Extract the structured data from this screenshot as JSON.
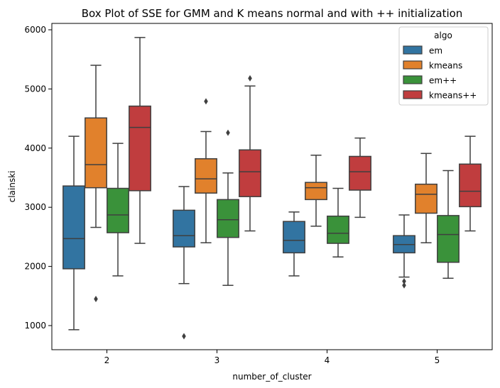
{
  "chart_data": {
    "type": "box",
    "title": "Box Plot of SSE for GMM and K means normal and with ++ initialization",
    "xlabel": "number_of_cluster",
    "ylabel": "clainski",
    "categories": [
      "2",
      "3",
      "4",
      "5"
    ],
    "ylim": [
      650,
      6300
    ],
    "yticks": [
      1000,
      2000,
      3000,
      4000,
      5000,
      6000
    ],
    "grid": false,
    "legend": {
      "title": "algo",
      "placement": "top-right"
    },
    "series": [
      {
        "name": "em",
        "color": "#3274a1",
        "boxes": [
          {
            "whislo": 930,
            "q1": 1960,
            "med": 2470,
            "q3": 3360,
            "whishi": 4200,
            "fliers": []
          },
          {
            "whislo": 1710,
            "q1": 2330,
            "med": 2520,
            "q3": 2950,
            "whishi": 3350,
            "fliers": [
              820
            ]
          },
          {
            "whislo": 1840,
            "q1": 2230,
            "med": 2440,
            "q3": 2760,
            "whishi": 2920,
            "fliers": []
          },
          {
            "whislo": 1820,
            "q1": 2230,
            "med": 2370,
            "q3": 2520,
            "whishi": 2870,
            "fliers": [
              1750,
              1680
            ]
          }
        ]
      },
      {
        "name": "kmeans",
        "color": "#e1812c",
        "boxes": [
          {
            "whislo": 2660,
            "q1": 3330,
            "med": 3720,
            "q3": 4510,
            "whishi": 5400,
            "fliers": [
              1450
            ]
          },
          {
            "whislo": 2400,
            "q1": 3240,
            "med": 3480,
            "q3": 3820,
            "whishi": 4280,
            "fliers": [
              4790
            ]
          },
          {
            "whislo": 2680,
            "q1": 3130,
            "med": 3330,
            "q3": 3420,
            "whishi": 3880,
            "fliers": []
          },
          {
            "whislo": 2400,
            "q1": 2900,
            "med": 3220,
            "q3": 3390,
            "whishi": 3910,
            "fliers": []
          }
        ]
      },
      {
        "name": "em++",
        "color": "#3a923a",
        "boxes": [
          {
            "whislo": 1840,
            "q1": 2570,
            "med": 2870,
            "q3": 3320,
            "whishi": 4080,
            "fliers": []
          },
          {
            "whislo": 1680,
            "q1": 2490,
            "med": 2790,
            "q3": 3130,
            "whishi": 3580,
            "fliers": [
              4260
            ]
          },
          {
            "whislo": 2160,
            "q1": 2390,
            "med": 2560,
            "q3": 2850,
            "whishi": 3320,
            "fliers": []
          },
          {
            "whislo": 1800,
            "q1": 2070,
            "med": 2540,
            "q3": 2860,
            "whishi": 3620,
            "fliers": []
          }
        ]
      },
      {
        "name": "kmeans++",
        "color": "#c03d3e",
        "boxes": [
          {
            "whislo": 2390,
            "q1": 3280,
            "med": 4350,
            "q3": 4710,
            "whishi": 5870,
            "fliers": []
          },
          {
            "whislo": 2600,
            "q1": 3180,
            "med": 3600,
            "q3": 3970,
            "whishi": 5050,
            "fliers": [
              5180
            ]
          },
          {
            "whislo": 2830,
            "q1": 3290,
            "med": 3600,
            "q3": 3860,
            "whishi": 4170,
            "fliers": []
          },
          {
            "whislo": 2600,
            "q1": 3010,
            "med": 3270,
            "q3": 3730,
            "whishi": 4200,
            "fliers": []
          }
        ]
      }
    ]
  }
}
